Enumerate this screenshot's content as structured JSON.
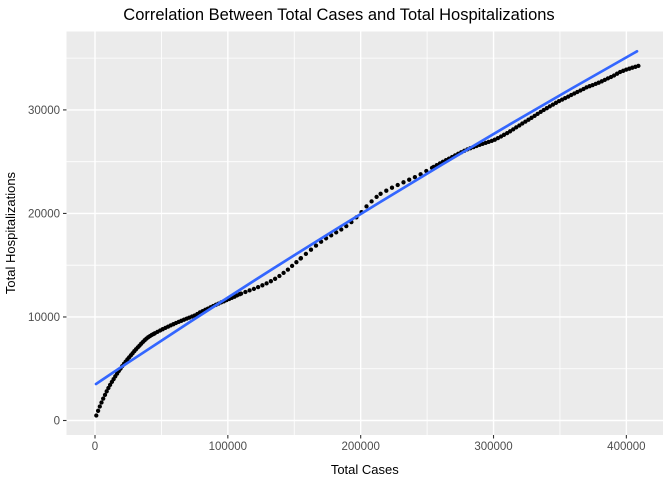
{
  "chart": {
    "title": "Correlation Between Total Cases and Total Hospitalizations"
  },
  "chart_data": {
    "type": "scatter",
    "title": "Correlation Between Total Cases and Total Hospitalizations",
    "xlabel": "Total Cases",
    "ylabel": "Total Hospitalizations",
    "x_ticks": [
      0,
      100000,
      200000,
      300000,
      400000
    ],
    "x_tick_labels": [
      "0",
      "100000",
      "200000",
      "300000",
      "400000"
    ],
    "x_minor_ticks": [
      50000,
      150000,
      250000,
      350000
    ],
    "y_ticks": [
      0,
      10000,
      20000,
      30000
    ],
    "y_tick_labels": [
      "0",
      "10000",
      "20000",
      "30000"
    ],
    "y_minor_ticks": [
      5000,
      15000,
      25000,
      35000
    ],
    "xlim": [
      -21500,
      427500
    ],
    "ylim": [
      -1400,
      37580
    ],
    "grid": true,
    "legend": "none",
    "colors": {
      "panel_bg": "#EBEBEB",
      "grid": "#FFFFFF",
      "points": "#000000",
      "smooth_line": "#3366FF",
      "tick_marks": "#333333",
      "tick_labels": "#4D4D4D",
      "axis_titles": "#000000",
      "title": "#000000"
    },
    "series": [
      {
        "name": "observations",
        "geom": "point",
        "note": "cumulative totals; dots sampled along this curve (cases, hospitalizations)",
        "curve_points": [
          [
            1000,
            350
          ],
          [
            3000,
            1050
          ],
          [
            6000,
            1950
          ],
          [
            9000,
            2780
          ],
          [
            12000,
            3500
          ],
          [
            15000,
            4150
          ],
          [
            18000,
            4750
          ],
          [
            21000,
            5300
          ],
          [
            24000,
            5800
          ],
          [
            27000,
            6250
          ],
          [
            30000,
            6700
          ],
          [
            33000,
            7100
          ],
          [
            36000,
            7500
          ],
          [
            39000,
            7850
          ],
          [
            42000,
            8100
          ],
          [
            45000,
            8300
          ],
          [
            48000,
            8500
          ],
          [
            51000,
            8700
          ],
          [
            54000,
            8900
          ],
          [
            57000,
            9100
          ],
          [
            60000,
            9300
          ],
          [
            63000,
            9500
          ],
          [
            66000,
            9700
          ],
          [
            70000,
            9950
          ],
          [
            75000,
            10250
          ],
          [
            80000,
            10650
          ],
          [
            85000,
            10950
          ],
          [
            90000,
            11250
          ],
          [
            95000,
            11500
          ],
          [
            100000,
            11750
          ],
          [
            105000,
            12000
          ],
          [
            110000,
            12300
          ],
          [
            115000,
            12550
          ],
          [
            120000,
            12800
          ],
          [
            125000,
            13100
          ],
          [
            130000,
            13400
          ],
          [
            135000,
            13750
          ],
          [
            140000,
            14150
          ],
          [
            145000,
            14600
          ],
          [
            150000,
            15100
          ],
          [
            155000,
            15600
          ],
          [
            160000,
            16100
          ],
          [
            165000,
            16600
          ],
          [
            170000,
            17100
          ],
          [
            175000,
            17550
          ],
          [
            180000,
            17950
          ],
          [
            185000,
            18350
          ],
          [
            190000,
            18800
          ],
          [
            195000,
            19350
          ],
          [
            200000,
            20000
          ],
          [
            205000,
            20700
          ],
          [
            210000,
            21300
          ],
          [
            215000,
            21800
          ],
          [
            220000,
            22150
          ],
          [
            225000,
            22500
          ],
          [
            230000,
            22850
          ],
          [
            235000,
            23200
          ],
          [
            240000,
            23550
          ],
          [
            245000,
            23900
          ],
          [
            250000,
            24300
          ],
          [
            260000,
            25000
          ],
          [
            270000,
            25600
          ],
          [
            280000,
            26200
          ],
          [
            290000,
            26700
          ],
          [
            300000,
            27150
          ],
          [
            310000,
            27800
          ],
          [
            320000,
            28500
          ],
          [
            330000,
            29200
          ],
          [
            340000,
            30000
          ],
          [
            350000,
            30800
          ],
          [
            360000,
            31500
          ],
          [
            370000,
            32150
          ],
          [
            380000,
            32600
          ],
          [
            390000,
            33200
          ],
          [
            395000,
            33600
          ],
          [
            400000,
            33900
          ],
          [
            404000,
            34100
          ],
          [
            407000,
            34250
          ],
          [
            409000,
            34350
          ]
        ],
        "sampling_ranges": [
          [
            1000,
            45000,
            1300
          ],
          [
            45000,
            110000,
            2000
          ],
          [
            110000,
            155000,
            3200
          ],
          [
            155000,
            215000,
            3800
          ],
          [
            215000,
            255000,
            4300
          ],
          [
            255000,
            409500,
            2300
          ]
        ]
      },
      {
        "name": "linear_smooth",
        "geom": "smooth",
        "points": [
          [
            750,
            3530
          ],
          [
            200000,
            19950
          ],
          [
            408000,
            35660
          ]
        ]
      }
    ]
  }
}
